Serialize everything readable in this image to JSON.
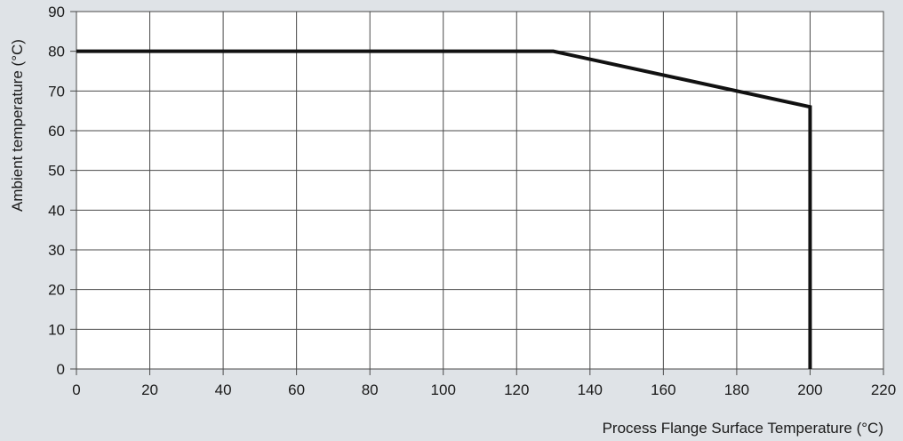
{
  "colors": {
    "background": "#dfe3e7",
    "plot_area": "#ffffff",
    "grid": "#4a4a4a",
    "line": "#111111"
  },
  "chart_data": {
    "type": "line",
    "title": "",
    "xlabel": "Process Flange Surface Temperature (°C)",
    "ylabel": "Ambient temperature (°C)",
    "xlim": [
      0,
      220
    ],
    "ylim": [
      0,
      90
    ],
    "x_ticks": [
      0,
      20,
      40,
      60,
      80,
      100,
      120,
      140,
      160,
      180,
      200,
      220
    ],
    "y_ticks": [
      0,
      10,
      20,
      30,
      40,
      50,
      60,
      70,
      80,
      90
    ],
    "grid": true,
    "legend": "none",
    "series": [
      {
        "x": [
          0,
          130,
          200,
          200
        ],
        "y": [
          80,
          80,
          66,
          0
        ]
      }
    ]
  }
}
